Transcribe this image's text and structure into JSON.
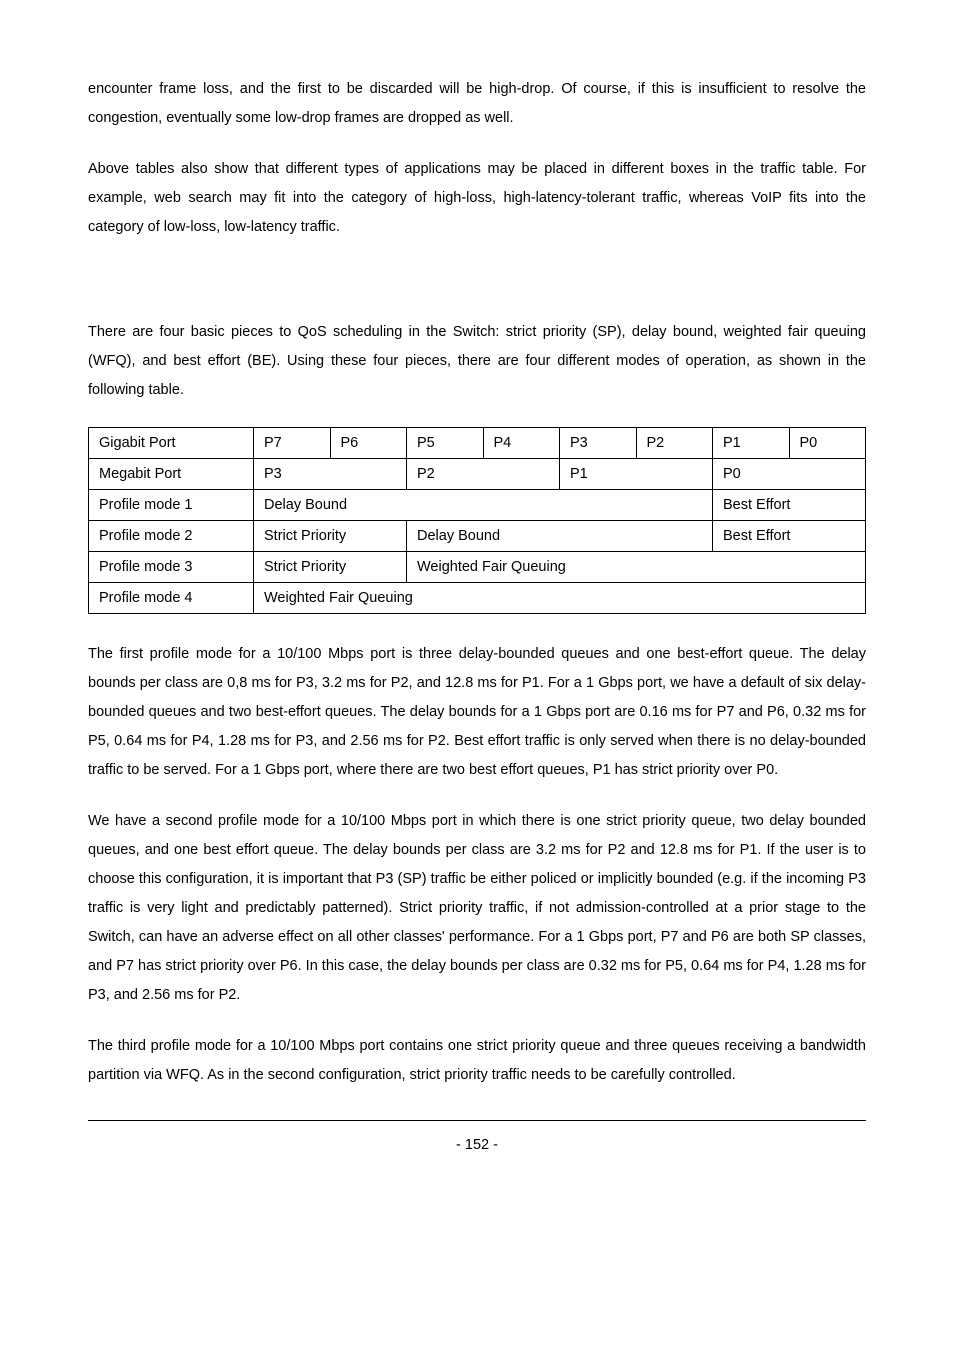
{
  "paragraphs": {
    "p1": "encounter frame loss, and the first to be discarded will be high-drop. Of course, if this is insufficient to resolve the congestion, eventually some low-drop frames are dropped as well.",
    "p2": "Above tables also show that different types of applications may be placed in different boxes in the traffic table. For example, web search may fit into the category of high-loss, high-latency-tolerant traffic, whereas VoIP fits into the category of low-loss, low-latency traffic.",
    "p3": "There are four basic pieces to QoS scheduling in the Switch: strict priority (SP), delay bound, weighted fair queuing (WFQ), and best effort (BE). Using these four pieces, there are four different modes of operation, as shown in the following table.",
    "p4": "The first profile mode for a 10/100 Mbps port is three delay-bounded queues and one best-effort queue. The delay bounds per class are 0,8 ms for P3, 3.2 ms for P2, and 12.8 ms for P1. For a 1 Gbps port, we have a default of six delay-bounded queues and two best-effort queues. The delay bounds for a 1 Gbps port are 0.16 ms for P7 and P6, 0.32 ms for P5, 0.64 ms for P4, 1.28 ms for P3, and 2.56 ms for P2. Best effort traffic is only served when there is no delay-bounded traffic to be served. For a 1 Gbps port, where there are two best effort queues, P1 has strict priority over P0.",
    "p5": "We have a second profile mode for a 10/100 Mbps port in which there is one strict priority queue, two delay bounded queues, and one best effort queue. The delay bounds per class are 3.2 ms for P2 and 12.8 ms for P1.   If the user is to choose this configuration, it is important that P3 (SP) traffic be either policed or implicitly bounded (e.g. if the incoming P3 traffic is very light and predictably patterned). Strict priority traffic, if not admission-controlled at a prior stage to the Switch, can have an adverse effect on all other classes' performance. For a 1 Gbps port, P7 and P6 are both SP classes, and P7 has strict priority over P6. In this case, the delay bounds per class are 0.32 ms for P5, 0.64 ms for P4, 1.28 ms for P3, and 2.56 ms for P2.",
    "p6": "The third profile mode for a 10/100 Mbps port contains one strict priority queue and three queues receiving a bandwidth partition via WFQ. As in the second configuration, strict priority traffic needs to be carefully controlled."
  },
  "table": {
    "row1": {
      "label": "Gigabit Port",
      "c1": "P7",
      "c2": "P6",
      "c3": "P5",
      "c4": "P4",
      "c5": "P3",
      "c6": "P2",
      "c7": "P1",
      "c8": "P0"
    },
    "row2": {
      "label": "Megabit Port",
      "c1": "P3",
      "c2": "P2",
      "c3": "P1",
      "c4": "P0"
    },
    "row3": {
      "label": "Profile mode 1",
      "c1": "Delay Bound",
      "c2": "Best Effort"
    },
    "row4": {
      "label": "Profile mode 2",
      "c1": "Strict Priority",
      "c2": "Delay Bound",
      "c3": "Best Effort"
    },
    "row5": {
      "label": "Profile mode 3",
      "c1": "Strict Priority",
      "c2": "Weighted Fair Queuing"
    },
    "row6": {
      "label": "Profile mode 4",
      "c1": "Weighted Fair Queuing"
    }
  },
  "page_number": "- 152 -"
}
